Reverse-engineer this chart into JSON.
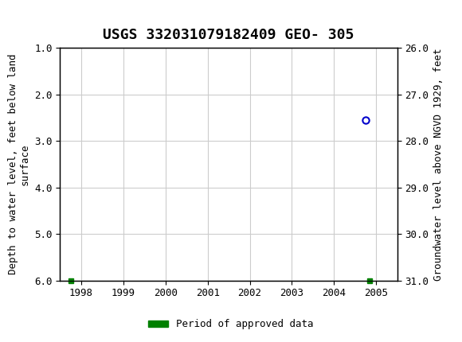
{
  "title": "USGS 332031079182409 GEO- 305",
  "header_color": "#1a6b3c",
  "ylabel_left": "Depth to water level, feet below land\nsurface",
  "ylabel_right": "Groundwater level above NGVD 1929, feet",
  "ylim_left": [
    1.0,
    6.0
  ],
  "ylim_right": [
    26.0,
    31.0
  ],
  "xlim": [
    1997.5,
    2005.5
  ],
  "yticks_left": [
    1.0,
    2.0,
    3.0,
    4.0,
    5.0,
    6.0
  ],
  "yticks_right": [
    26.0,
    27.0,
    28.0,
    29.0,
    30.0,
    31.0
  ],
  "xticks": [
    1998,
    1999,
    2000,
    2001,
    2002,
    2003,
    2004,
    2005
  ],
  "data_point_x": 2004.75,
  "data_point_y": 2.55,
  "data_point_color": "#0000cc",
  "square1_x": 1997.75,
  "square1_y": 6.0,
  "square2_x": 2004.85,
  "square2_y": 6.0,
  "square_color": "#008000",
  "legend_label": "Period of approved data",
  "legend_color": "#008000",
  "bg_color": "#ffffff",
  "grid_color": "#cccccc",
  "title_fontsize": 13,
  "axis_fontsize": 9,
  "tick_fontsize": 9
}
